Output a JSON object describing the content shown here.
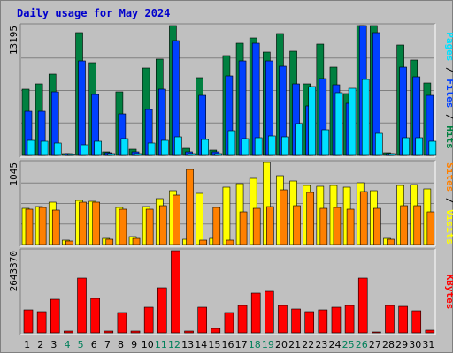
{
  "chart_data": {
    "type": "bar",
    "title": "Daily usage for May 2024",
    "categories": [
      "1",
      "2",
      "3",
      "4",
      "5",
      "6",
      "7",
      "8",
      "9",
      "10",
      "11",
      "12",
      "13",
      "14",
      "15",
      "16",
      "17",
      "18",
      "19",
      "20",
      "21",
      "22",
      "23",
      "24",
      "25",
      "26",
      "27",
      "28",
      "29",
      "30",
      "31"
    ],
    "weekend_days": [
      "4",
      "5",
      "11",
      "12",
      "18",
      "19",
      "25",
      "26"
    ],
    "panels": [
      {
        "name": "hits-files-pages",
        "max_label": "13195",
        "ymax": 13195,
        "grid": true,
        "series": [
          {
            "name": "Hits",
            "color": "#008040",
            "values": [
              6700,
              7300,
              8300,
              200,
              12500,
              9400,
              400,
              6500,
              600,
              8900,
              9800,
              13195,
              700,
              7900,
              500,
              10100,
              11400,
              11900,
              10500,
              12400,
              10600,
              7300,
              11300,
              9000,
              6300,
              13195,
              13195,
              300,
              11200,
              9700,
              7400
            ]
          },
          {
            "name": "Files",
            "color": "#0040ff",
            "values": [
              4500,
              4500,
              6500,
              150,
              9600,
              6200,
              250,
              4200,
              400,
              4700,
              6700,
              11700,
              400,
              6100,
              350,
              8100,
              9600,
              11400,
              9600,
              9100,
              7300,
              5000,
              7800,
              7200,
              5300,
              13195,
              12500,
              200,
              9000,
              8000,
              6100
            ]
          },
          {
            "name": "Pages",
            "color": "#00e0ff",
            "values": [
              1500,
              1400,
              1300,
              100,
              1100,
              1400,
              150,
              1700,
              200,
              1300,
              1500,
              1900,
              200,
              1600,
              200,
              2500,
              1700,
              1800,
              2000,
              1900,
              3200,
              7000,
              2600,
              6400,
              6800,
              7700,
              2200,
              150,
              1800,
              1800,
              1400
            ]
          }
        ]
      },
      {
        "name": "visits-sites",
        "max_label": "1045",
        "ymax": 1045,
        "grid": true,
        "series": [
          {
            "name": "Visits",
            "color": "#ffff00",
            "values": [
              460,
              480,
              540,
              60,
              560,
              550,
              80,
              470,
              100,
              480,
              580,
              690,
              70,
              650,
              80,
              730,
              780,
              840,
              1045,
              880,
              810,
              750,
              740,
              750,
              730,
              790,
              690,
              80,
              750,
              760,
              710
            ]
          },
          {
            "name": "Sites",
            "color": "#ff8000",
            "values": [
              450,
              470,
              440,
              50,
              540,
              540,
              70,
              450,
              80,
              450,
              490,
              630,
              950,
              60,
              470,
              60,
              420,
              460,
              480,
              700,
              490,
              660,
              460,
              470,
              450,
              670,
              460,
              70,
              500,
              500,
              420
            ]
          }
        ]
      },
      {
        "name": "kbytes",
        "max_label": "2643370",
        "ymax": 2643370,
        "grid": false,
        "series": [
          {
            "name": "KBytes",
            "color": "#ff0000",
            "values": [
              740000,
              680000,
              1080000,
              60000,
              1750000,
              1110000,
              60000,
              660000,
              60000,
              830000,
              1450000,
              2643370,
              60000,
              820000,
              130000,
              660000,
              890000,
              1290000,
              1330000,
              880000,
              760000,
              680000,
              740000,
              820000,
              880000,
              1750000,
              40000,
              880000,
              860000,
              720000,
              80000
            ]
          }
        ]
      }
    ],
    "right_labels": [
      {
        "parts": [
          {
            "text": "Pages",
            "color": "#00e0ff"
          },
          {
            "text": " / ",
            "color": "#000000"
          },
          {
            "text": "Files",
            "color": "#0040ff"
          },
          {
            "text": " / ",
            "color": "#000000"
          },
          {
            "text": "Hits",
            "color": "#008040"
          }
        ]
      },
      {
        "parts": [
          {
            "text": "Sites",
            "color": "#ff8000"
          },
          {
            "text": " / ",
            "color": "#000000"
          },
          {
            "text": "Visits",
            "color": "#ffff00"
          }
        ]
      },
      {
        "parts": [
          {
            "text": "KBytes",
            "color": "#ff0000"
          }
        ]
      }
    ],
    "day_colors": {
      "weekday": "#000000",
      "weekend": "#00805a"
    }
  }
}
